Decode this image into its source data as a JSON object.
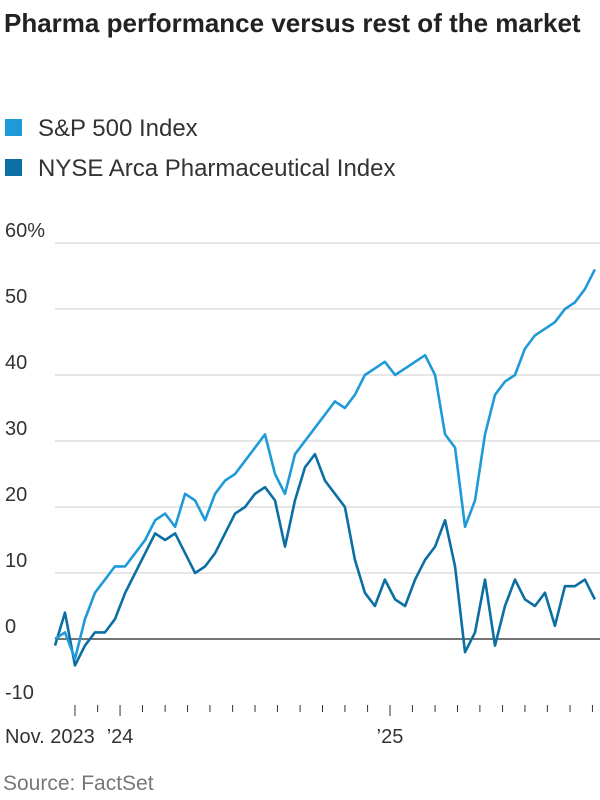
{
  "chart_data": {
    "type": "line",
    "title": "Pharma performance versus rest of the market",
    "source": "Source: FactSet",
    "x": [
      2023.759,
      2023.796,
      2023.833,
      2023.87,
      2023.907,
      2023.944,
      2023.981,
      2024.019,
      2024.056,
      2024.093,
      2024.13,
      2024.167,
      2024.204,
      2024.241,
      2024.278,
      2024.315,
      2024.352,
      2024.389,
      2024.426,
      2024.463,
      2024.5,
      2024.537,
      2024.574,
      2024.611,
      2024.648,
      2024.685,
      2024.722,
      2024.759,
      2024.796,
      2024.833,
      2024.87,
      2024.907,
      2024.944,
      2024.981,
      2025.019,
      2025.056,
      2025.093,
      2025.13,
      2025.167,
      2025.204,
      2025.241,
      2025.278,
      2025.315,
      2025.352,
      2025.389,
      2025.426,
      2025.463,
      2025.5,
      2025.537,
      2025.574,
      2025.611,
      2025.648,
      2025.685,
      2025.722,
      2025.759
    ],
    "series": [
      {
        "name": "S&P 500 Index",
        "color": "#1e9ad8",
        "values": [
          0,
          1,
          -3,
          3,
          7,
          9,
          11,
          11,
          13,
          15,
          18,
          19,
          17,
          22,
          21,
          18,
          22,
          24,
          25,
          27,
          29,
          31,
          25,
          22,
          28,
          30,
          32,
          34,
          36,
          35,
          37,
          40,
          41,
          42,
          40,
          41,
          42,
          43,
          40,
          31,
          29,
          17,
          21,
          31,
          37,
          39,
          40,
          44,
          46,
          47,
          48,
          50,
          51,
          53,
          56
        ]
      },
      {
        "name": "NYSE Arca Pharmaceutical Index",
        "color": "#0b6fa4",
        "values": [
          -1,
          4,
          -4,
          -1,
          1,
          1,
          3,
          7,
          10,
          13,
          16,
          15,
          16,
          13,
          10,
          11,
          13,
          16,
          19,
          20,
          22,
          23,
          21,
          14,
          21,
          26,
          28,
          24,
          22,
          20,
          12,
          7,
          5,
          9,
          6,
          5,
          9,
          12,
          14,
          18,
          11,
          -2,
          1,
          9,
          -1,
          5,
          9,
          6,
          5,
          7,
          2,
          8,
          8,
          9,
          6
        ]
      }
    ],
    "xlim": [
      2023.759,
      2025.778
    ],
    "xticks": [
      {
        "value": 2023.833,
        "label": "Nov. 2023"
      },
      {
        "value": 2024,
        "label": "’24"
      },
      {
        "value": 2025,
        "label": "’25"
      }
    ],
    "xminorticks": [
      2023.917,
      2024.083,
      2024.167,
      2024.25,
      2024.333,
      2024.417,
      2024.5,
      2024.583,
      2024.667,
      2024.75,
      2024.833,
      2024.917,
      2025.083,
      2025.167,
      2025.25,
      2025.333,
      2025.417,
      2025.5,
      2025.583,
      2025.667,
      2025.75
    ],
    "ylim": [
      -10,
      60
    ],
    "yticks": [
      -10,
      0,
      10,
      20,
      30,
      40,
      50,
      {
        "value": 60,
        "label": "60%"
      }
    ],
    "grid": true,
    "zero_line": true,
    "legend": "top"
  }
}
